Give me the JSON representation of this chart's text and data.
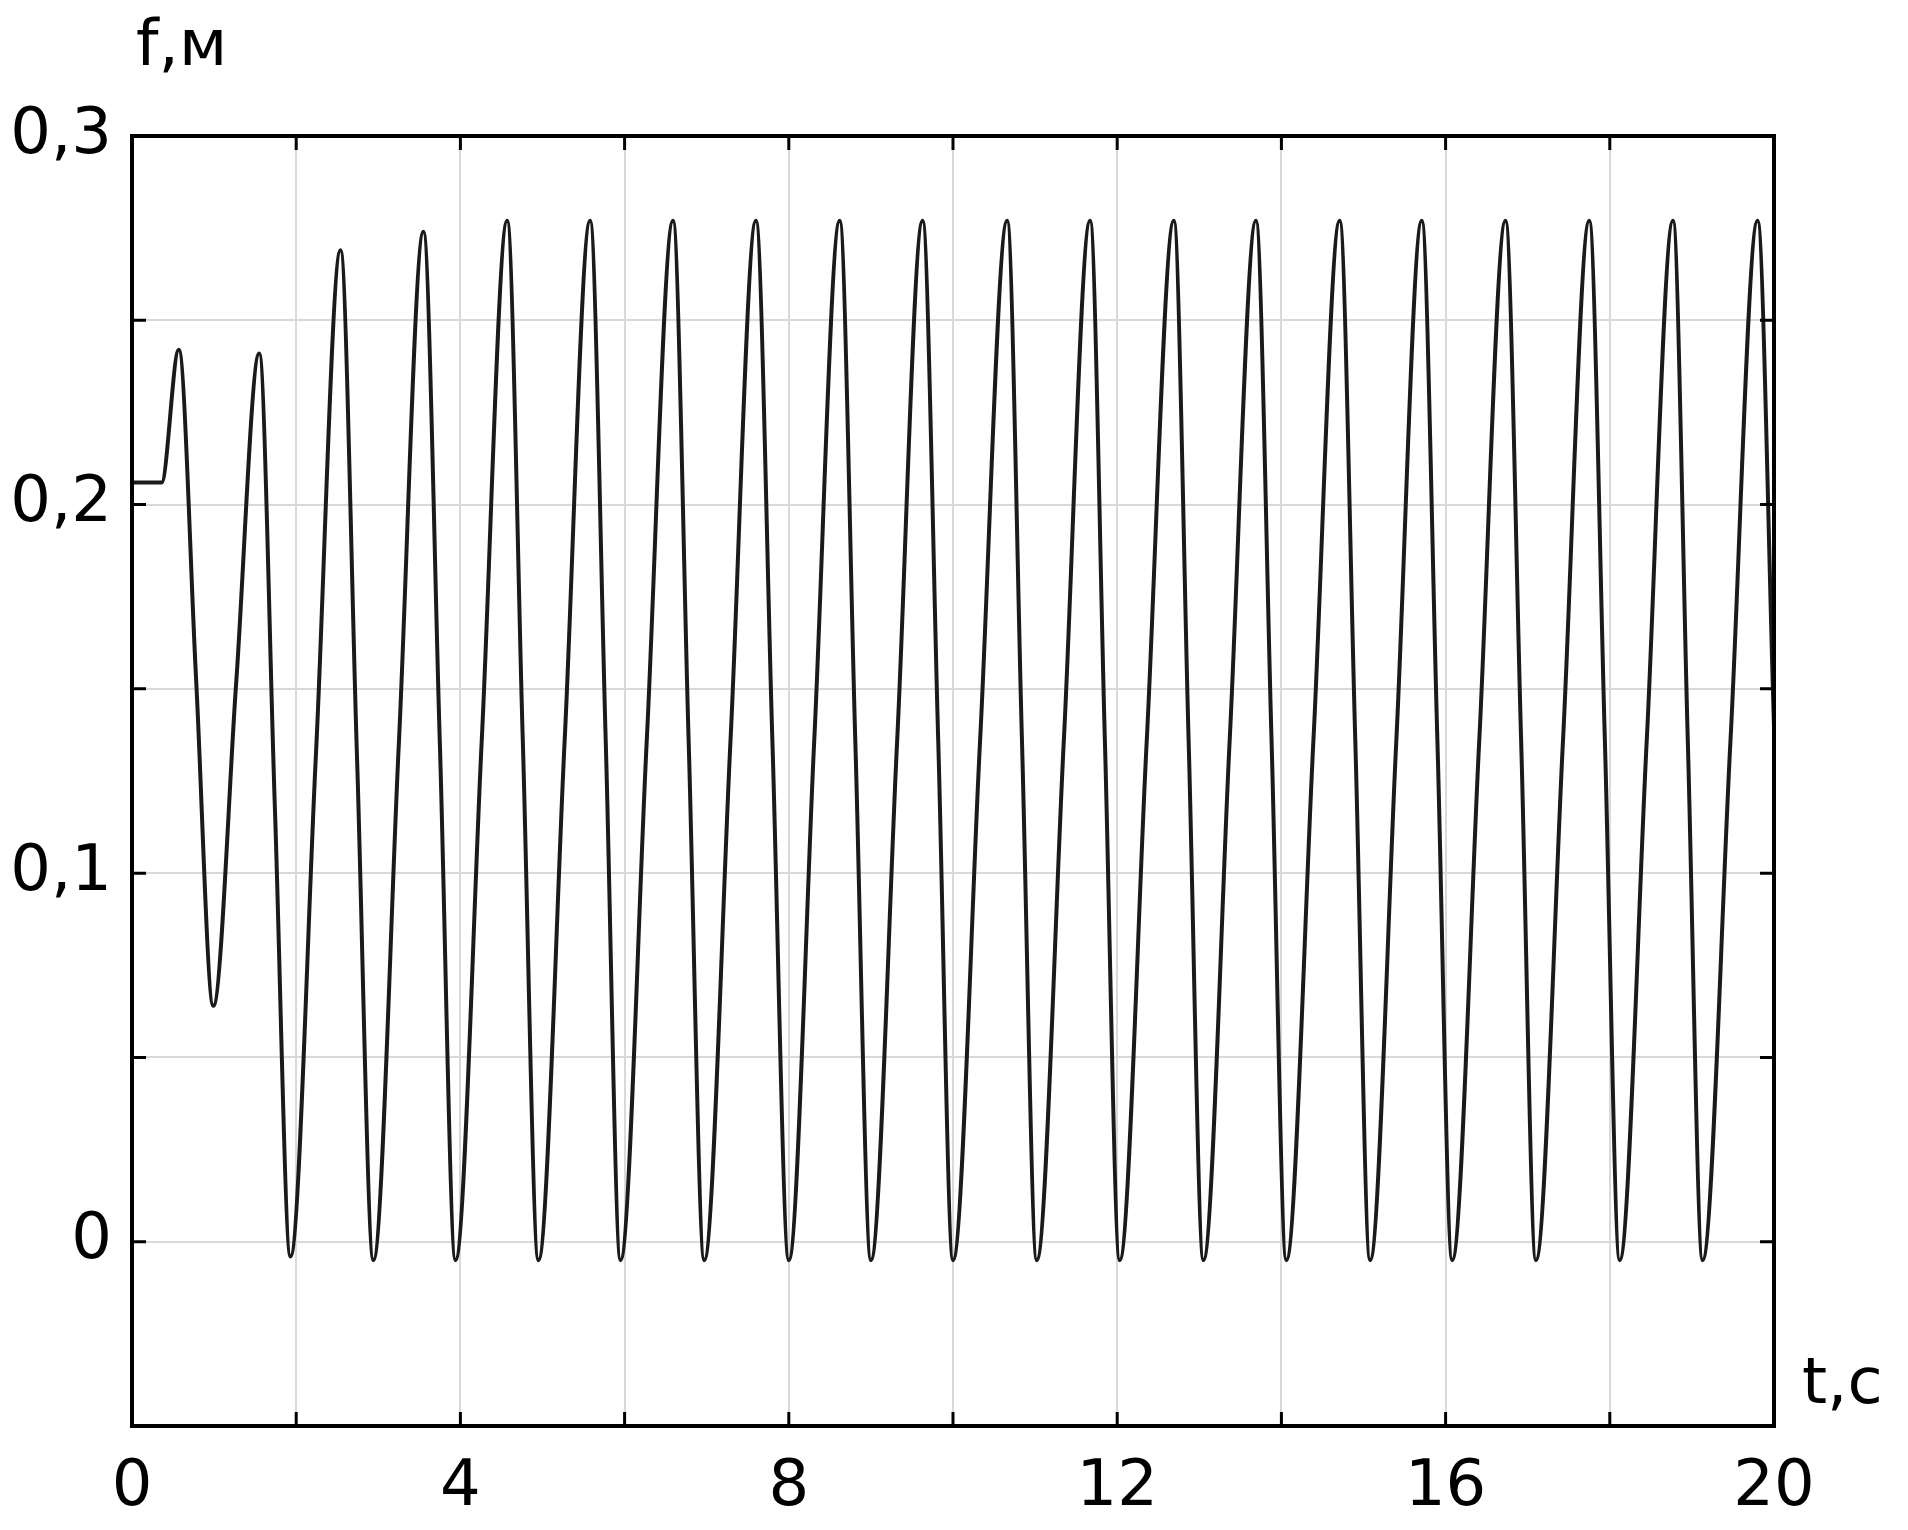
{
  "chart_data": {
    "type": "line",
    "xlabel": "t,с",
    "ylabel": "f,м",
    "color": "#1a1a1a",
    "x": [
      0,
      0.36,
      0.57,
      0.78,
      0.99,
      1.27,
      1.55,
      1.74,
      1.93,
      2.24,
      2.54,
      2.74,
      2.94,
      3.25,
      3.55,
      3.75,
      3.94,
      4.26,
      4.57,
      4.76,
      4.95,
      5.27,
      5.58,
      5.77,
      5.95,
      6.27,
      6.59,
      6.78,
      6.97,
      7.29,
      7.6,
      7.8,
      8,
      8.31,
      8.62,
      8.81,
      9,
      9.32,
      9.63,
      9.82,
      10,
      10.33,
      10.66,
      10.84,
      11.02,
      11.35,
      11.67,
      11.85,
      12.03,
      12.36,
      12.69,
      12.87,
      13.05,
      13.37,
      13.69,
      13.88,
      14.06,
      14.39,
      14.71,
      14.9,
      15.08,
      15.4,
      15.71,
      15.9,
      16.08,
      16.41,
      16.73,
      16.92,
      17.1,
      17.43,
      17.75,
      17.94,
      18.12,
      18.45,
      18.77,
      18.95,
      19.13,
      19.47,
      19.8,
      20
    ],
    "values": [
      0.206,
      0.206,
      0.242,
      0.153,
      0.064,
      0.152,
      0.241,
      0.118,
      -0.004,
      0.132,
      0.269,
      0.132,
      -0.005,
      0.135,
      0.274,
      0.135,
      -0.005,
      0.136,
      0.277,
      0.136,
      -0.005,
      0.136,
      0.277,
      0.136,
      -0.005,
      0.136,
      0.277,
      0.136,
      -0.005,
      0.136,
      0.277,
      0.136,
      -0.005,
      0.136,
      0.277,
      0.136,
      -0.005,
      0.136,
      0.277,
      0.136,
      -0.005,
      0.136,
      0.277,
      0.136,
      -0.005,
      0.136,
      0.277,
      0.136,
      -0.005,
      0.136,
      0.277,
      0.136,
      -0.005,
      0.136,
      0.277,
      0.136,
      -0.005,
      0.136,
      0.277,
      0.136,
      -0.005,
      0.136,
      0.277,
      0.136,
      -0.005,
      0.136,
      0.277,
      0.136,
      -0.005,
      0.136,
      0.277,
      0.136,
      -0.005,
      0.136,
      0.277,
      0.136,
      -0.005,
      0.136,
      0.277,
      0.14
    ],
    "xlim": [
      0,
      20
    ],
    "xticks": [
      0,
      {
        "value": 2,
        "label": null
      },
      4,
      {
        "value": 6,
        "label": null
      },
      8,
      {
        "value": 10,
        "label": null
      },
      12,
      {
        "value": 14,
        "label": null
      },
      16,
      {
        "value": 18,
        "label": null
      },
      20
    ],
    "ylim": [
      -0.05,
      0.3
    ],
    "yticks": [
      0,
      {
        "value": 0.05,
        "label": null
      },
      {
        "value": 0.1,
        "label": "0,1"
      },
      {
        "value": 0.15,
        "label": null
      },
      {
        "value": 0.2,
        "label": "0,2"
      },
      {
        "value": 0.25,
        "label": null
      },
      {
        "value": 0.3,
        "label": "0,3"
      }
    ],
    "grid": true
  }
}
